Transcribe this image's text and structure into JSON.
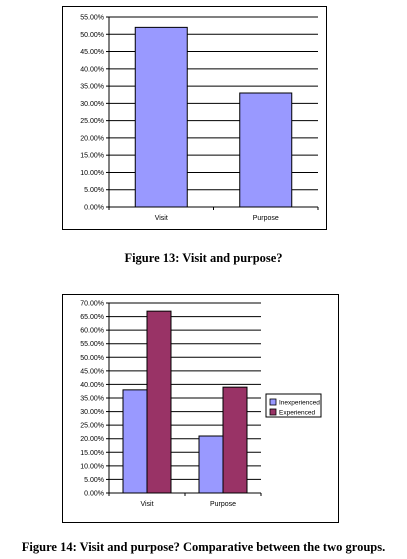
{
  "chart_data": [
    {
      "type": "bar",
      "categories": [
        "Visit",
        "Purpose"
      ],
      "series": [
        {
          "values": [
            52.0,
            33.0
          ],
          "color": "#9999ff"
        }
      ],
      "y_ticks": [
        "0.00%",
        "5.00%",
        "10.00%",
        "15.00%",
        "20.00%",
        "25.00%",
        "30.00%",
        "35.00%",
        "40.00%",
        "45.00%",
        "50.00%",
        "55.00%"
      ],
      "ylim": [
        0,
        55
      ],
      "grid": true,
      "legend": "none"
    },
    {
      "type": "bar",
      "categories": [
        "Visit",
        "Purpose"
      ],
      "series": [
        {
          "name": "Inexperienced",
          "values": [
            38.0,
            21.0
          ],
          "color": "#9999ff"
        },
        {
          "name": "Experienced",
          "values": [
            67.0,
            39.0
          ],
          "color": "#993366"
        }
      ],
      "y_ticks": [
        "0.00%",
        "5.00%",
        "10.00%",
        "15.00%",
        "20.00%",
        "25.00%",
        "30.00%",
        "35.00%",
        "40.00%",
        "45.00%",
        "50.00%",
        "55.00%",
        "60.00%",
        "65.00%",
        "70.00%"
      ],
      "ylim": [
        0,
        70
      ],
      "grid": true,
      "legend": "right"
    }
  ],
  "captions": {
    "figure13": "Figure 13: Visit and purpose?",
    "figure14": "Figure 14: Visit and purpose? Comparative between the two groups."
  }
}
